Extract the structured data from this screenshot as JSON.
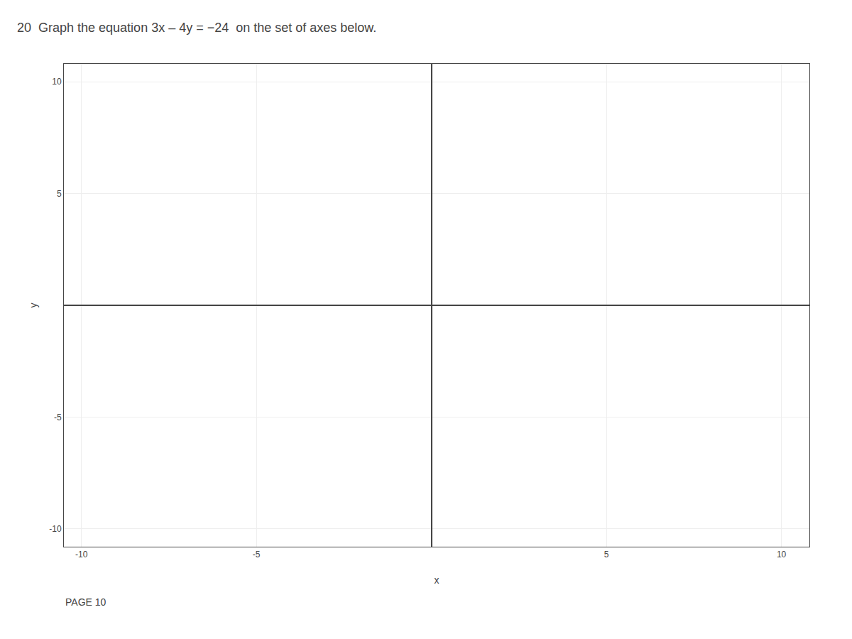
{
  "chart_data": {
    "type": "scatter",
    "title": "20  Graph the equation 3x – 4y = −24  on the set of axes below.",
    "x_label": "x",
    "y_label": "y",
    "annotations": [
      "PAGE 10"
    ],
    "xlim": [
      -10.5,
      10.8
    ],
    "ylim": [
      -10.8,
      10.8
    ],
    "xticks": [
      -10,
      -5,
      5,
      10
    ],
    "yticks": [
      -10,
      -5,
      5,
      10
    ],
    "grid": true
  }
}
